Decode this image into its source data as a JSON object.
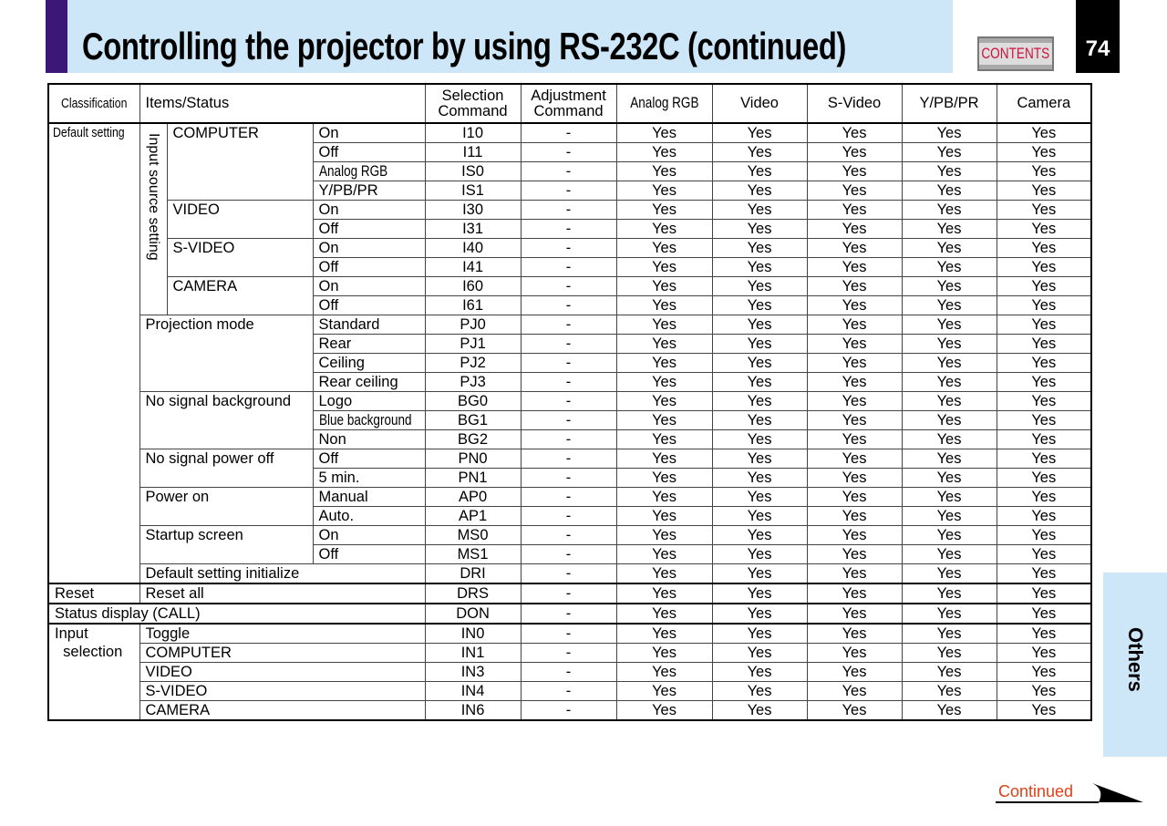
{
  "header": {
    "title": "Controlling the projector by using RS-232C (continued)",
    "contents_label": "CONTENTS",
    "page_number": "74"
  },
  "side_tab": {
    "label": "Others"
  },
  "footer": {
    "continued_label": "Continued"
  },
  "colors": {
    "header_bg": "#cde7f9",
    "accent_purple": "#3b1877",
    "contents_text": "#d0103a",
    "continued_text": "#e0401a"
  },
  "table": {
    "headers": [
      "Classification",
      "Items/Status",
      "Selection\nCommand",
      "Adjustment\nCommand",
      "Analog RGB",
      "Video",
      "S-Video",
      "Y/PB/PR",
      "Camera"
    ],
    "sections": [
      {
        "classification": "Default setting",
        "items": [
          {
            "group": "Input source setting",
            "label": "COMPUTER",
            "statuses": [
              {
                "status": "On",
                "cmd": "I10",
                "adj": "-",
                "vals": [
                  "Yes",
                  "Yes",
                  "Yes",
                  "Yes",
                  "Yes"
                ]
              },
              {
                "status": "Off",
                "cmd": "I11",
                "adj": "-",
                "vals": [
                  "Yes",
                  "Yes",
                  "Yes",
                  "Yes",
                  "Yes"
                ]
              },
              {
                "status": "Analog RGB",
                "cmd": "IS0",
                "adj": "-",
                "vals": [
                  "Yes",
                  "Yes",
                  "Yes",
                  "Yes",
                  "Yes"
                ]
              },
              {
                "status": "Y/PB/PR",
                "cmd": "IS1",
                "adj": "-",
                "vals": [
                  "Yes",
                  "Yes",
                  "Yes",
                  "Yes",
                  "Yes"
                ]
              }
            ]
          },
          {
            "group": "Input source setting",
            "label": "VIDEO",
            "statuses": [
              {
                "status": "On",
                "cmd": "I30",
                "adj": "-",
                "vals": [
                  "Yes",
                  "Yes",
                  "Yes",
                  "Yes",
                  "Yes"
                ]
              },
              {
                "status": "Off",
                "cmd": "I31",
                "adj": "-",
                "vals": [
                  "Yes",
                  "Yes",
                  "Yes",
                  "Yes",
                  "Yes"
                ]
              }
            ]
          },
          {
            "group": "Input source setting",
            "label": "S-VIDEO",
            "statuses": [
              {
                "status": "On",
                "cmd": "I40",
                "adj": "-",
                "vals": [
                  "Yes",
                  "Yes",
                  "Yes",
                  "Yes",
                  "Yes"
                ]
              },
              {
                "status": "Off",
                "cmd": "I41",
                "adj": "-",
                "vals": [
                  "Yes",
                  "Yes",
                  "Yes",
                  "Yes",
                  "Yes"
                ]
              }
            ]
          },
          {
            "group": "Input source setting",
            "label": "CAMERA",
            "statuses": [
              {
                "status": "On",
                "cmd": "I60",
                "adj": "-",
                "vals": [
                  "Yes",
                  "Yes",
                  "Yes",
                  "Yes",
                  "Yes"
                ]
              },
              {
                "status": "Off",
                "cmd": "I61",
                "adj": "-",
                "vals": [
                  "Yes",
                  "Yes",
                  "Yes",
                  "Yes",
                  "Yes"
                ]
              }
            ]
          },
          {
            "label": "Projection mode",
            "statuses": [
              {
                "status": "Standard",
                "cmd": "PJ0",
                "adj": "-",
                "vals": [
                  "Yes",
                  "Yes",
                  "Yes",
                  "Yes",
                  "Yes"
                ]
              },
              {
                "status": "Rear",
                "cmd": "PJ1",
                "adj": "-",
                "vals": [
                  "Yes",
                  "Yes",
                  "Yes",
                  "Yes",
                  "Yes"
                ]
              },
              {
                "status": "Ceiling",
                "cmd": "PJ2",
                "adj": "-",
                "vals": [
                  "Yes",
                  "Yes",
                  "Yes",
                  "Yes",
                  "Yes"
                ]
              },
              {
                "status": "Rear ceiling",
                "cmd": "PJ3",
                "adj": "-",
                "vals": [
                  "Yes",
                  "Yes",
                  "Yes",
                  "Yes",
                  "Yes"
                ]
              }
            ]
          },
          {
            "label": "No signal background",
            "statuses": [
              {
                "status": "Logo",
                "cmd": "BG0",
                "adj": "-",
                "vals": [
                  "Yes",
                  "Yes",
                  "Yes",
                  "Yes",
                  "Yes"
                ]
              },
              {
                "status": "Blue background",
                "cmd": "BG1",
                "adj": "-",
                "vals": [
                  "Yes",
                  "Yes",
                  "Yes",
                  "Yes",
                  "Yes"
                ]
              },
              {
                "status": "Non",
                "cmd": "BG2",
                "adj": "-",
                "vals": [
                  "Yes",
                  "Yes",
                  "Yes",
                  "Yes",
                  "Yes"
                ]
              }
            ]
          },
          {
            "label": "No signal power off",
            "statuses": [
              {
                "status": "Off",
                "cmd": "PN0",
                "adj": "-",
                "vals": [
                  "Yes",
                  "Yes",
                  "Yes",
                  "Yes",
                  "Yes"
                ]
              },
              {
                "status": "5 min.",
                "cmd": "PN1",
                "adj": "-",
                "vals": [
                  "Yes",
                  "Yes",
                  "Yes",
                  "Yes",
                  "Yes"
                ]
              }
            ]
          },
          {
            "label": "Power on",
            "statuses": [
              {
                "status": "Manual",
                "cmd": "AP0",
                "adj": "-",
                "vals": [
                  "Yes",
                  "Yes",
                  "Yes",
                  "Yes",
                  "Yes"
                ]
              },
              {
                "status": "Auto.",
                "cmd": "AP1",
                "adj": "-",
                "vals": [
                  "Yes",
                  "Yes",
                  "Yes",
                  "Yes",
                  "Yes"
                ]
              }
            ]
          },
          {
            "label": "Startup screen",
            "statuses": [
              {
                "status": "On",
                "cmd": "MS0",
                "adj": "-",
                "vals": [
                  "Yes",
                  "Yes",
                  "Yes",
                  "Yes",
                  "Yes"
                ]
              },
              {
                "status": "Off",
                "cmd": "MS1",
                "adj": "-",
                "vals": [
                  "Yes",
                  "Yes",
                  "Yes",
                  "Yes",
                  "Yes"
                ]
              }
            ]
          },
          {
            "label": "Default setting initialize",
            "cmd": "DRI",
            "adj": "-",
            "vals": [
              "Yes",
              "Yes",
              "Yes",
              "Yes",
              "Yes"
            ]
          }
        ]
      },
      {
        "classification": "Reset",
        "items": [
          {
            "label": "Reset all",
            "cmd": "DRS",
            "adj": "-",
            "vals": [
              "Yes",
              "Yes",
              "Yes",
              "Yes",
              "Yes"
            ]
          }
        ]
      },
      {
        "classification": "Status display (CALL)",
        "full": true,
        "items": [
          {
            "cmd": "DON",
            "adj": "-",
            "vals": [
              "Yes",
              "Yes",
              "Yes",
              "Yes",
              "Yes"
            ]
          }
        ]
      },
      {
        "classification": "Input\n  selection",
        "items": [
          {
            "label": "Toggle",
            "cmd": "IN0",
            "adj": "-",
            "vals": [
              "Yes",
              "Yes",
              "Yes",
              "Yes",
              "Yes"
            ]
          },
          {
            "label": "COMPUTER",
            "cmd": "IN1",
            "adj": "-",
            "vals": [
              "Yes",
              "Yes",
              "Yes",
              "Yes",
              "Yes"
            ]
          },
          {
            "label": "VIDEO",
            "cmd": "IN3",
            "adj": "-",
            "vals": [
              "Yes",
              "Yes",
              "Yes",
              "Yes",
              "Yes"
            ]
          },
          {
            "label": "S-VIDEO",
            "cmd": "IN4",
            "adj": "-",
            "vals": [
              "Yes",
              "Yes",
              "Yes",
              "Yes",
              "Yes"
            ]
          },
          {
            "label": "CAMERA",
            "cmd": "IN6",
            "adj": "-",
            "vals": [
              "Yes",
              "Yes",
              "Yes",
              "Yes",
              "Yes"
            ]
          }
        ]
      }
    ]
  }
}
